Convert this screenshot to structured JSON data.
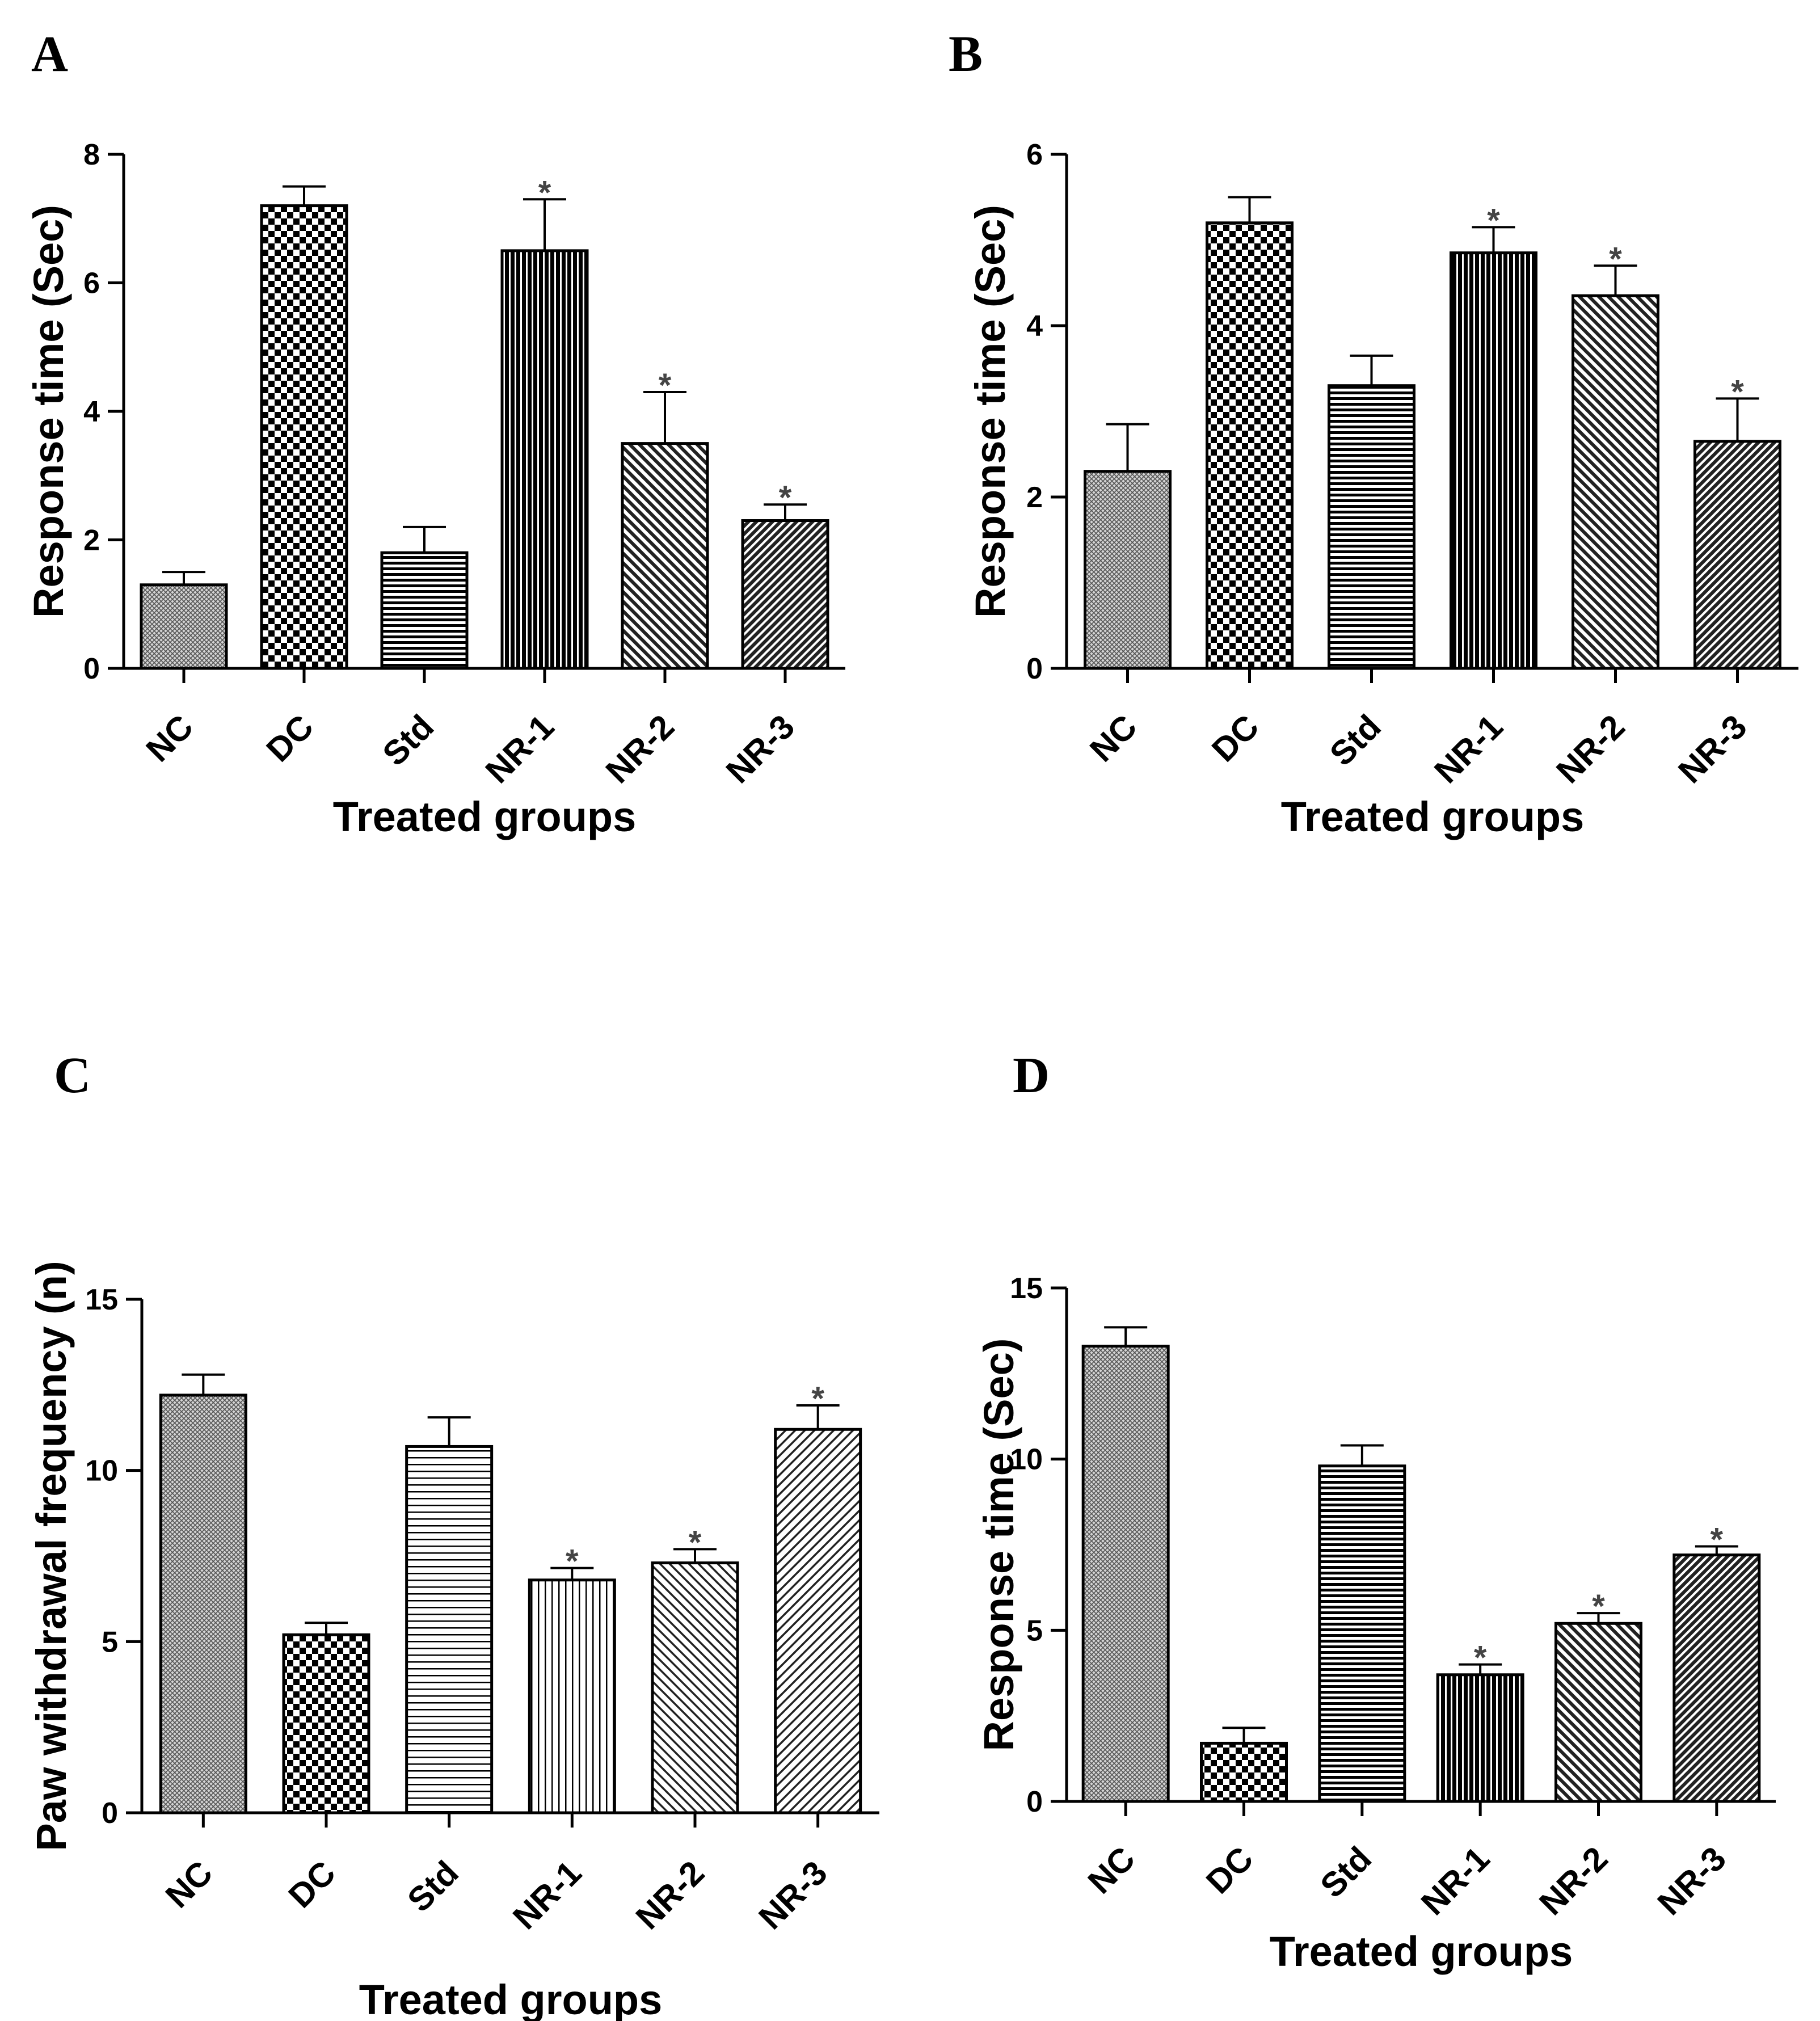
{
  "chart_data": [
    {
      "panel": "A",
      "type": "bar",
      "categories": [
        "NC",
        "DC",
        "Std",
        "NR-1",
        "NR-2",
        "NR-3"
      ],
      "values": [
        1.3,
        7.2,
        1.8,
        6.5,
        3.5,
        2.3
      ],
      "errors": [
        0.2,
        0.3,
        0.4,
        0.8,
        0.8,
        0.25
      ],
      "significance": [
        "",
        "",
        "",
        "*",
        "*",
        "*"
      ],
      "patterns": [
        "fine-crosshatch",
        "checker",
        "horizontal",
        "vertical-dark",
        "diagonal",
        "diagonal-dense"
      ],
      "xlabel": "Treated groups",
      "ylabel": "Response time (Sec)",
      "ylim": [
        0,
        8
      ],
      "yticks": [
        0,
        2,
        4,
        6,
        8
      ]
    },
    {
      "panel": "B",
      "type": "bar",
      "categories": [
        "NC",
        "DC",
        "Std",
        "NR-1",
        "NR-2",
        "NR-3"
      ],
      "values": [
        2.3,
        5.2,
        3.3,
        4.85,
        4.35,
        2.65
      ],
      "errors": [
        0.55,
        0.3,
        0.35,
        0.3,
        0.35,
        0.5
      ],
      "significance": [
        "",
        "",
        "",
        "*",
        "*",
        "*"
      ],
      "patterns": [
        "fine-crosshatch",
        "checker",
        "horizontal",
        "vertical-dark",
        "diagonal",
        "diagonal-dense"
      ],
      "xlabel": "Treated groups",
      "ylabel": "Response time (Sec)",
      "ylim": [
        0,
        6
      ],
      "yticks": [
        0,
        2,
        4,
        6
      ]
    },
    {
      "panel": "C",
      "type": "bar",
      "categories": [
        "NC",
        "DC",
        "Std",
        "NR-1",
        "NR-2",
        "NR-3"
      ],
      "values": [
        12.2,
        5.2,
        10.7,
        6.8,
        7.3,
        11.2
      ],
      "errors": [
        0.6,
        0.35,
        0.85,
        0.35,
        0.4,
        0.7
      ],
      "significance": [
        "",
        "",
        "",
        "*",
        "*",
        "*"
      ],
      "patterns": [
        "fine-crosshatch",
        "checker",
        "horizontal-light",
        "vertical-light",
        "diagonal-light",
        "diagonal-light2"
      ],
      "xlabel": "Treated groups",
      "ylabel": "Paw withdrawal frequency (n)",
      "ylim": [
        0,
        15
      ],
      "yticks": [
        0,
        5,
        10,
        15
      ]
    },
    {
      "panel": "D",
      "type": "bar",
      "categories": [
        "NC",
        "DC",
        "Std",
        "NR-1",
        "NR-2",
        "NR-3"
      ],
      "values": [
        13.3,
        1.7,
        9.8,
        3.7,
        5.2,
        7.2
      ],
      "errors": [
        0.55,
        0.45,
        0.6,
        0.3,
        0.3,
        0.25
      ],
      "significance": [
        "",
        "",
        "",
        "*",
        "*",
        "*"
      ],
      "patterns": [
        "fine-crosshatch",
        "checker",
        "horizontal",
        "vertical-dark",
        "diagonal",
        "diagonal-dense"
      ],
      "xlabel": "Treated groups",
      "ylabel": "Response time (Sec)",
      "ylim": [
        0,
        15
      ],
      "yticks": [
        0,
        5,
        10,
        15
      ]
    }
  ]
}
